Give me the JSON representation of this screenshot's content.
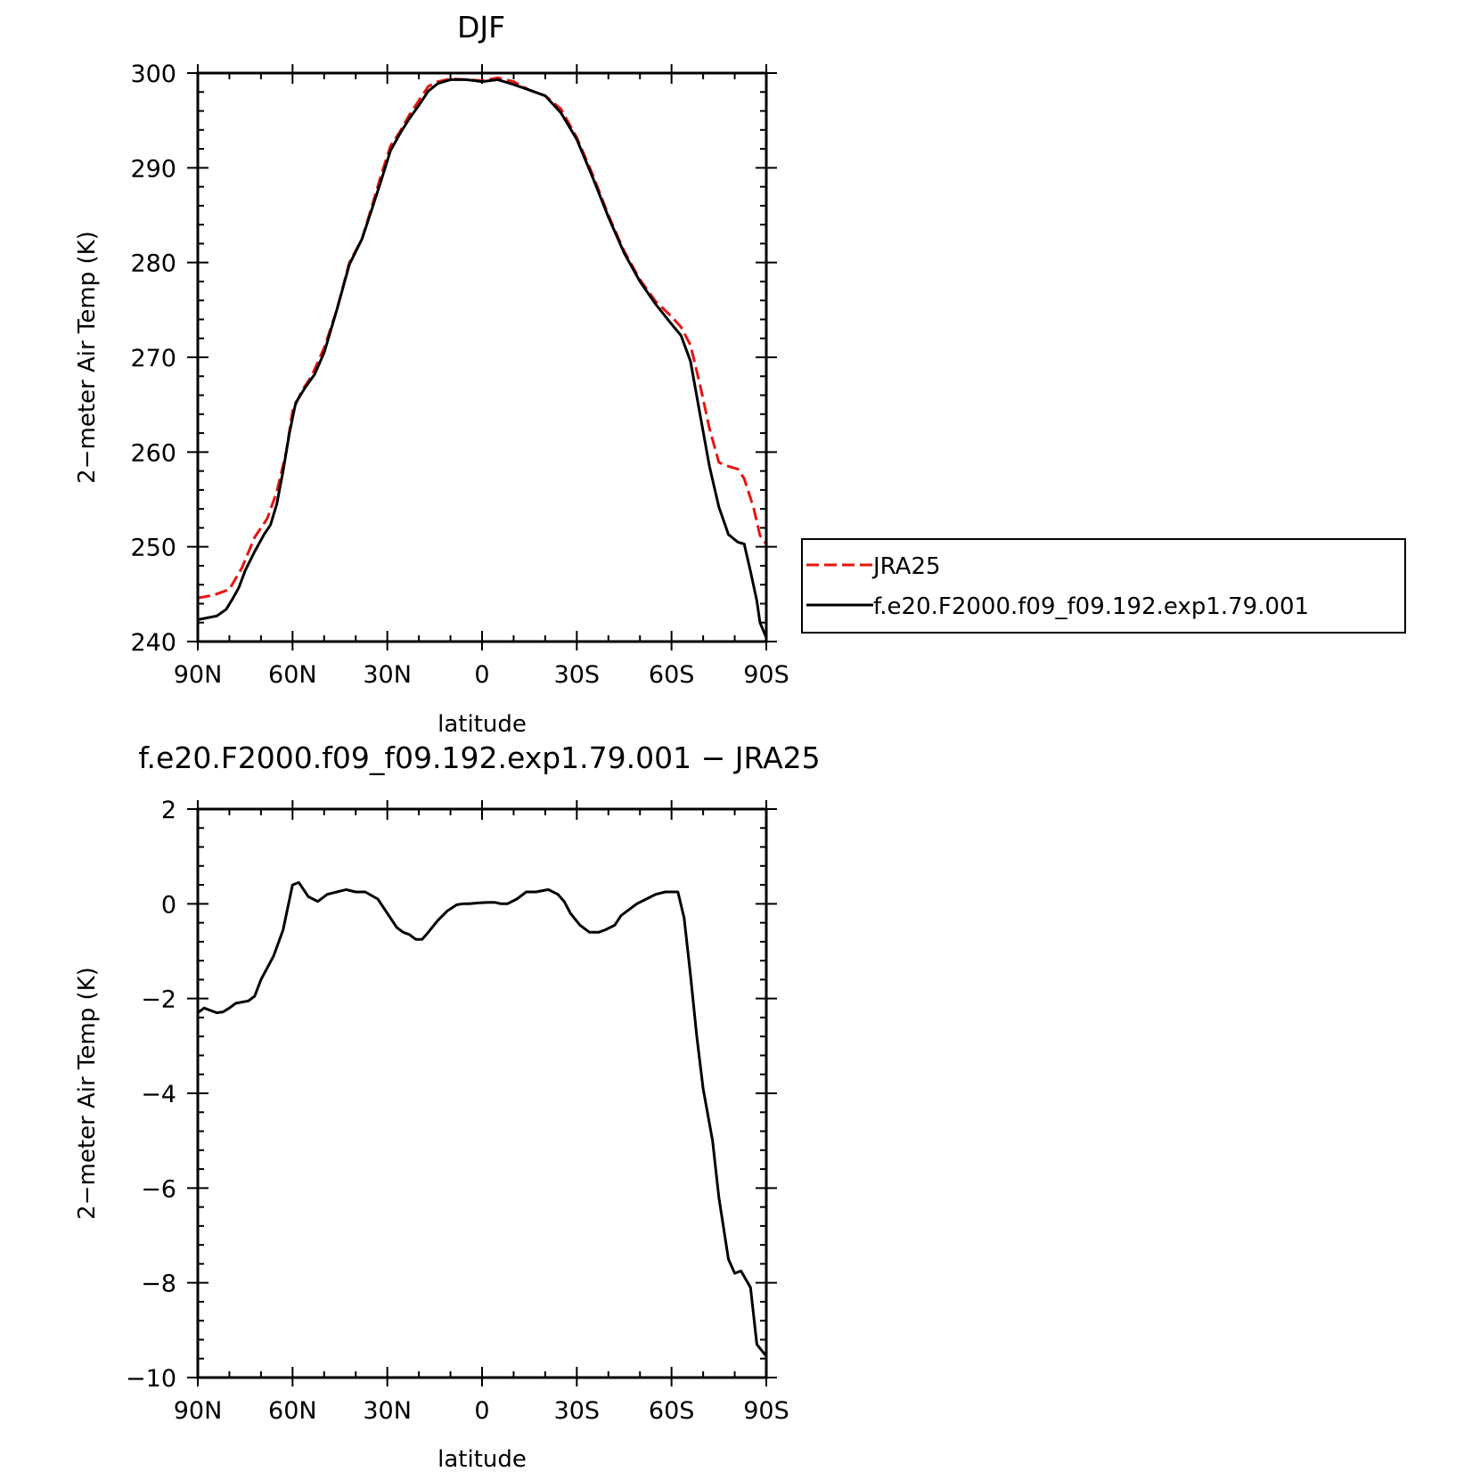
{
  "chart_data": [
    {
      "type": "line",
      "title": "DJF",
      "xlabel": "latitude",
      "ylabel": "2−meter Air Temp (K)",
      "xlim": [
        90,
        -90
      ],
      "ylim": [
        240,
        300
      ],
      "x_ticks": [
        {
          "value": 90,
          "label": "90N"
        },
        {
          "value": 60,
          "label": "60N"
        },
        {
          "value": 30,
          "label": "30N"
        },
        {
          "value": 0,
          "label": "0"
        },
        {
          "value": -30,
          "label": "30S"
        },
        {
          "value": -60,
          "label": "60S"
        },
        {
          "value": -90,
          "label": "90S"
        }
      ],
      "y_ticks": [
        {
          "value": 300,
          "label": "300"
        },
        {
          "value": 290,
          "label": "290"
        },
        {
          "value": 280,
          "label": "280"
        },
        {
          "value": 270,
          "label": "270"
        },
        {
          "value": 260,
          "label": "260"
        },
        {
          "value": 250,
          "label": "250"
        },
        {
          "value": 240,
          "label": "240"
        }
      ],
      "legend": "outside-right",
      "series": [
        {
          "name": "JRA25",
          "color": "#e8140f",
          "style": "dashed",
          "x": [
            90,
            85,
            80,
            76,
            72,
            68,
            65,
            62,
            60,
            57,
            54,
            50,
            46,
            42,
            38,
            35,
            32,
            29,
            26,
            23,
            20,
            17,
            14,
            10,
            5,
            0,
            -5,
            -10,
            -15,
            -20,
            -25,
            -30,
            -35,
            -40,
            -45,
            -50,
            -55,
            -60,
            -63,
            -66,
            -69,
            -72,
            -75,
            -78,
            -81,
            -83,
            -86,
            -88,
            -90
          ],
          "y": [
            244.6,
            244.9,
            245.5,
            247.8,
            251.0,
            253.0,
            255.8,
            260.0,
            264.3,
            266.5,
            268.0,
            271.0,
            275.0,
            280.0,
            282.5,
            285.8,
            289.2,
            292.3,
            293.8,
            295.6,
            297.1,
            298.6,
            299.1,
            299.4,
            299.3,
            299.2,
            299.5,
            299.1,
            298.2,
            297.6,
            296.2,
            293.2,
            289.3,
            285.0,
            281.2,
            278.2,
            275.9,
            274.3,
            273.2,
            271.3,
            267.1,
            262.5,
            258.9,
            258.5,
            258.2,
            257.2,
            254.1,
            251.2,
            250.3
          ]
        },
        {
          "name": "f.e20.F2000.f09_f09.192.exp1.79.001",
          "color": "#000000",
          "style": "solid",
          "x": [
            90,
            87,
            84,
            81,
            79,
            77,
            75,
            72,
            69,
            67,
            65,
            63,
            61,
            59,
            56,
            53,
            50,
            46,
            42,
            38,
            35,
            32,
            29,
            26,
            23,
            20,
            17,
            14,
            10,
            5,
            0,
            -5,
            -10,
            -15,
            -20,
            -25,
            -30,
            -35,
            -40,
            -45,
            -50,
            -55,
            -60,
            -63,
            -66,
            -69,
            -72,
            -75,
            -78,
            -81,
            -83,
            -85,
            -87,
            -88,
            -90
          ],
          "y": [
            242.3,
            242.5,
            242.7,
            243.4,
            244.5,
            245.7,
            247.5,
            249.5,
            251.3,
            252.3,
            254.5,
            258.0,
            262.0,
            265.2,
            266.8,
            268.2,
            270.5,
            275.0,
            279.8,
            282.5,
            285.5,
            288.6,
            291.8,
            293.6,
            295.2,
            296.6,
            298.1,
            298.9,
            299.3,
            299.3,
            299.1,
            299.3,
            298.8,
            298.2,
            297.6,
            295.8,
            293.0,
            289.0,
            284.8,
            281.0,
            278.0,
            275.6,
            273.5,
            272.3,
            269.6,
            264.0,
            258.5,
            254.2,
            251.3,
            250.5,
            250.3,
            247.4,
            244.3,
            242.0,
            240.4
          ]
        }
      ]
    },
    {
      "type": "line",
      "title": "f.e20.F2000.f09_f09.192.exp1.79.001 − JRA25",
      "xlabel": "latitude",
      "ylabel": "2−meter Air Temp (K)",
      "xlim": [
        90,
        -90
      ],
      "ylim": [
        -10,
        2
      ],
      "x_ticks": [
        {
          "value": 90,
          "label": "90N"
        },
        {
          "value": 60,
          "label": "60N"
        },
        {
          "value": 30,
          "label": "30N"
        },
        {
          "value": 0,
          "label": "0"
        },
        {
          "value": -30,
          "label": "30S"
        },
        {
          "value": -60,
          "label": "60S"
        },
        {
          "value": -90,
          "label": "90S"
        }
      ],
      "y_ticks": [
        {
          "value": 2,
          "label": "2"
        },
        {
          "value": 0,
          "label": "0"
        },
        {
          "value": -2,
          "label": "−2"
        },
        {
          "value": -4,
          "label": "−4"
        },
        {
          "value": -6,
          "label": "−6"
        },
        {
          "value": -8,
          "label": "−8"
        },
        {
          "value": -10,
          "label": "−10"
        }
      ],
      "series": [
        {
          "color": "#000000",
          "style": "solid",
          "x": [
            90,
            88,
            86,
            84,
            82,
            80,
            78,
            74,
            72,
            70,
            68,
            66,
            63,
            60,
            58,
            55,
            52,
            49,
            46,
            43,
            40,
            37,
            33,
            30,
            27,
            25,
            23,
            21,
            19,
            17,
            14,
            11,
            8,
            6,
            4,
            1,
            -2,
            -4,
            -6,
            -8,
            -11,
            -14,
            -17,
            -21,
            -24,
            -26,
            -28,
            -31,
            -34,
            -37,
            -39,
            -42,
            -44,
            -47,
            -49,
            -52,
            -55,
            -58,
            -60,
            -62,
            -64,
            -66,
            -68,
            -70,
            -73,
            -75,
            -78,
            -80,
            -82,
            -85,
            -87,
            -90
          ],
          "y": [
            -2.3,
            -2.2,
            -2.25,
            -2.3,
            -2.28,
            -2.2,
            -2.1,
            -2.05,
            -1.95,
            -1.6,
            -1.35,
            -1.1,
            -0.55,
            0.4,
            0.45,
            0.15,
            0.05,
            0.2,
            0.25,
            0.3,
            0.25,
            0.25,
            0.1,
            -0.2,
            -0.5,
            -0.6,
            -0.65,
            -0.75,
            -0.75,
            -0.6,
            -0.35,
            -0.15,
            -0.02,
            0.0,
            0.0,
            0.02,
            0.03,
            0.03,
            0.0,
            0.0,
            0.1,
            0.25,
            0.25,
            0.3,
            0.2,
            0.05,
            -0.2,
            -0.45,
            -0.6,
            -0.6,
            -0.55,
            -0.45,
            -0.25,
            -0.1,
            0.0,
            0.1,
            0.2,
            0.25,
            0.25,
            0.25,
            -0.3,
            -1.5,
            -2.8,
            -3.9,
            -5.0,
            -6.2,
            -7.5,
            -7.8,
            -7.75,
            -8.1,
            -9.3,
            -9.55
          ]
        }
      ]
    }
  ]
}
